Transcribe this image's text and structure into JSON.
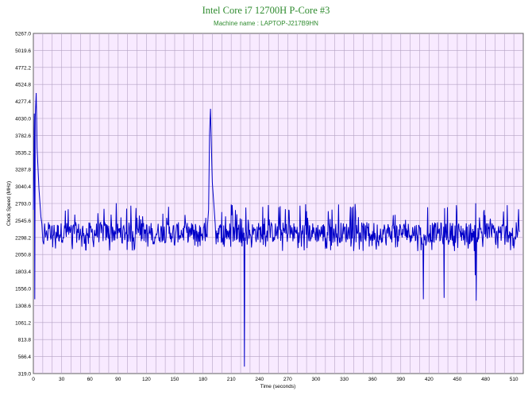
{
  "chart_data": {
    "type": "line",
    "title": "Intel Core i7 12700H P-Core #3",
    "subtitle": "Machine name : LAPTOP-J217B9HN",
    "xlabel": "Time (seconds)",
    "ylabel": "Clock Speed (MHz)",
    "xlim": [
      0,
      520
    ],
    "ylim": [
      319.0,
      5267.0
    ],
    "x_ticks": [
      0,
      30,
      60,
      90,
      120,
      150,
      180,
      210,
      240,
      270,
      300,
      330,
      360,
      390,
      420,
      450,
      480,
      510
    ],
    "y_ticks": [
      "319.0",
      "566.4",
      "813.8",
      "1061.2",
      "1308.6",
      "1556.0",
      "1803.4",
      "2050.8",
      "2298.2",
      "2545.6",
      "2793.0",
      "3040.4",
      "3287.8",
      "3535.2",
      "3782.6",
      "4030.0",
      "4277.4",
      "4524.8",
      "4772.2",
      "5019.6",
      "5267.0"
    ],
    "grid": true,
    "colors": {
      "plot_background": "#f8eaff",
      "grid": "#b4a2c4",
      "series": "#0000c8",
      "title": "#2e8b2e",
      "axis_text": "#000000"
    },
    "series": [
      {
        "points": [
          [
            0,
            2700
          ],
          [
            1,
            4100
          ],
          [
            1.5,
            1400
          ],
          [
            2,
            4050
          ],
          [
            3,
            4400
          ],
          [
            4,
            3600
          ],
          [
            5,
            3300
          ],
          [
            6,
            3000
          ],
          [
            7,
            2800
          ],
          [
            8,
            2600
          ],
          [
            9,
            2500
          ],
          [
            10,
            2250
          ],
          [
            11,
            2200
          ],
          [
            12,
            2500
          ],
          [
            13,
            2300
          ],
          [
            14,
            2400
          ],
          [
            15,
            2250
          ],
          [
            185,
            2500
          ],
          [
            186,
            2700
          ],
          [
            187,
            3800
          ],
          [
            188,
            4170
          ],
          [
            189,
            3600
          ],
          [
            190,
            3100
          ],
          [
            191,
            2900
          ],
          [
            192,
            2700
          ],
          [
            193,
            2500
          ],
          [
            194,
            2200
          ],
          [
            222,
            2298
          ],
          [
            223,
            2250
          ],
          [
            224,
            420
          ],
          [
            225,
            2250
          ],
          [
            226,
            2400
          ],
          [
            434,
            2300
          ],
          [
            435,
            2200
          ],
          [
            436,
            1420
          ],
          [
            437,
            2300
          ],
          [
            412,
            2298
          ],
          [
            413,
            2200
          ],
          [
            414,
            1400
          ],
          [
            415,
            2300
          ],
          [
            467,
            2300
          ],
          [
            468,
            2100
          ],
          [
            469,
            1750
          ],
          [
            470,
            1380
          ],
          [
            471,
            2300
          ],
          [
            500,
            2340
          ],
          [
            516,
            2380
          ]
        ]
      }
    ]
  }
}
